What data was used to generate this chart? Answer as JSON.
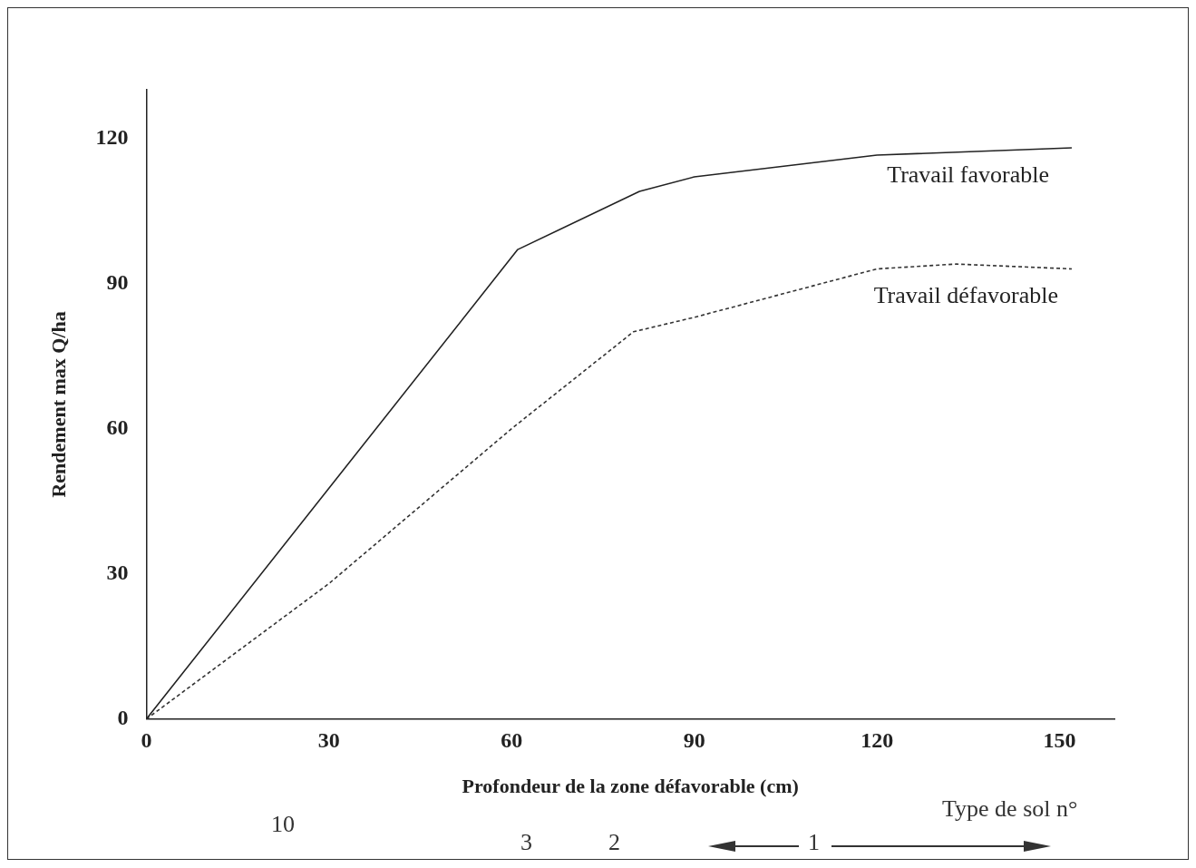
{
  "chart_data": {
    "type": "line",
    "xlabel": "Profondeur de la zone défavorable (cm)",
    "ylabel": "Rendement max Q/ha",
    "xlim": [
      0,
      159
    ],
    "xticks": [
      0,
      30,
      60,
      90,
      120,
      150
    ],
    "ylim": [
      0,
      130
    ],
    "yticks": [
      0,
      30,
      60,
      90,
      120
    ],
    "annotations": [
      "10",
      "3",
      "2",
      "1",
      "Type de sol n°"
    ],
    "grid": false,
    "legend": false,
    "marker": "none",
    "series": [
      {
        "name": "Travail favorable",
        "color": "#222222",
        "line_style": "solid",
        "x": [
          0,
          61,
          81,
          90,
          120,
          152
        ],
        "values": [
          0,
          97,
          109,
          112,
          116.5,
          118
        ]
      },
      {
        "name": "Travail défavorable",
        "color": "#333333",
        "line_style": "dashed",
        "x": [
          0,
          30,
          60,
          80,
          90,
          120,
          133,
          152
        ],
        "values": [
          0,
          28,
          60,
          80,
          83,
          93,
          94,
          93
        ]
      }
    ]
  }
}
